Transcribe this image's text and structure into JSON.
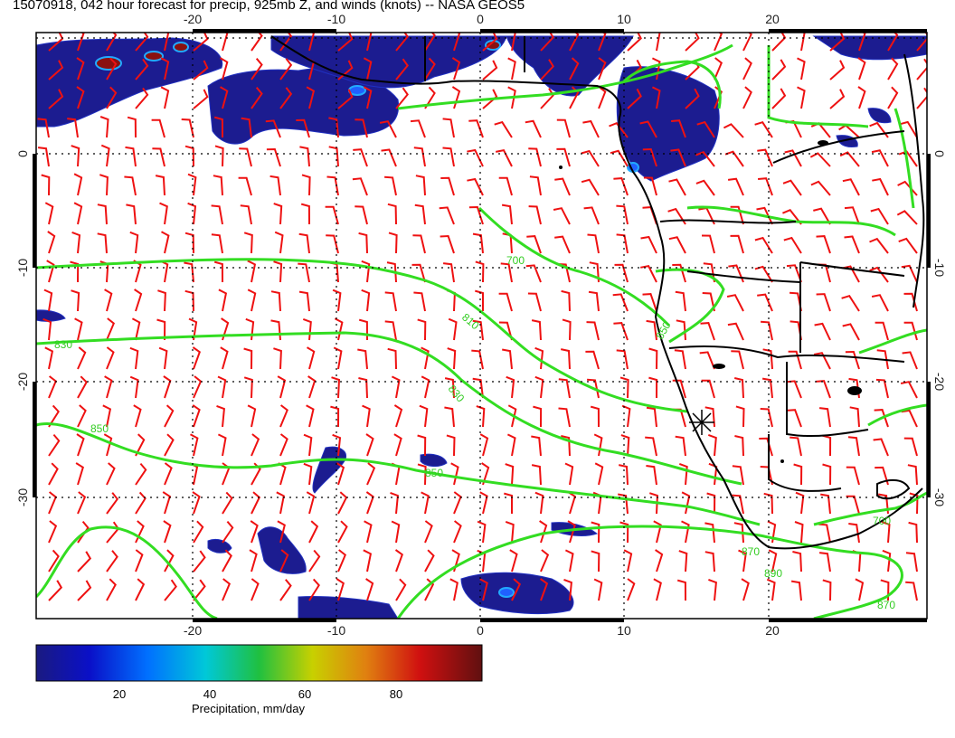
{
  "title": "15070918, 042 hour forecast for precip, 925mb Z, and winds (knots) -- NASA GEOS5",
  "map": {
    "lon_ticks": [
      -20,
      -10,
      0,
      10,
      20
    ],
    "lat_ticks": [
      0,
      -10,
      -20,
      -30
    ],
    "lon_range": [
      -30,
      30
    ],
    "lat_range": [
      -40,
      10
    ],
    "contour_labels": [
      "700",
      "810",
      "830",
      "830",
      "850",
      "850",
      "850",
      "870",
      "870",
      "890",
      "700"
    ],
    "colors": {
      "precip_dark": "#1a1a8c",
      "contour": "#33dd22",
      "wind_barb": "#ee1111",
      "coast": "#000000"
    }
  },
  "colorbar": {
    "label": "Precipitation, mm/day",
    "ticks": [
      20,
      40,
      60,
      80
    ],
    "range": [
      0,
      100
    ]
  }
}
